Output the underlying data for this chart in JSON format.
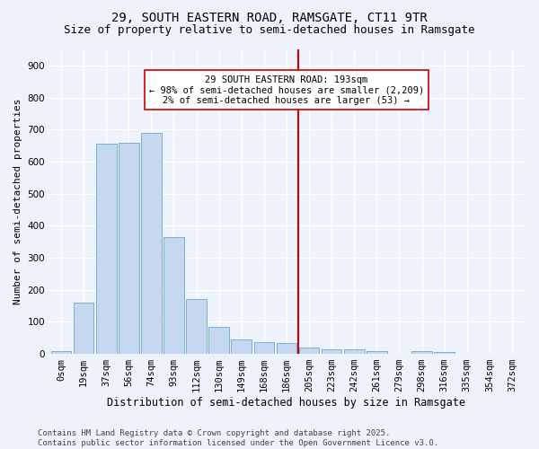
{
  "title1": "29, SOUTH EASTERN ROAD, RAMSGATE, CT11 9TR",
  "title2": "Size of property relative to semi-detached houses in Ramsgate",
  "xlabel": "Distribution of semi-detached houses by size in Ramsgate",
  "ylabel": "Number of semi-detached properties",
  "bar_color": "#c5d8f0",
  "bar_edge_color": "#7aafd4",
  "background_color": "#eef2fb",
  "grid_color": "#ffffff",
  "categories": [
    "0sqm",
    "19sqm",
    "37sqm",
    "56sqm",
    "74sqm",
    "93sqm",
    "112sqm",
    "130sqm",
    "149sqm",
    "168sqm",
    "186sqm",
    "205sqm",
    "223sqm",
    "242sqm",
    "261sqm",
    "279sqm",
    "298sqm",
    "316sqm",
    "335sqm",
    "354sqm",
    "372sqm"
  ],
  "values": [
    8,
    160,
    655,
    660,
    690,
    365,
    170,
    85,
    45,
    38,
    33,
    20,
    15,
    13,
    10,
    0,
    10,
    5,
    0,
    0,
    0
  ],
  "vline_x": 10.5,
  "vline_color": "#cc0000",
  "annotation_text": "29 SOUTH EASTERN ROAD: 193sqm\n← 98% of semi-detached houses are smaller (2,209)\n2% of semi-detached houses are larger (53) →",
  "annotation_box_color": "#ffffff",
  "annotation_box_edge_color": "#cc0000",
  "ylim": [
    0,
    950
  ],
  "yticks": [
    0,
    100,
    200,
    300,
    400,
    500,
    600,
    700,
    800,
    900
  ],
  "footnote": "Contains HM Land Registry data © Crown copyright and database right 2025.\nContains public sector information licensed under the Open Government Licence v3.0.",
  "title1_fontsize": 10,
  "title2_fontsize": 9,
  "xlabel_fontsize": 8.5,
  "ylabel_fontsize": 8,
  "tick_fontsize": 7.5,
  "annotation_fontsize": 7.5,
  "footnote_fontsize": 6.5
}
